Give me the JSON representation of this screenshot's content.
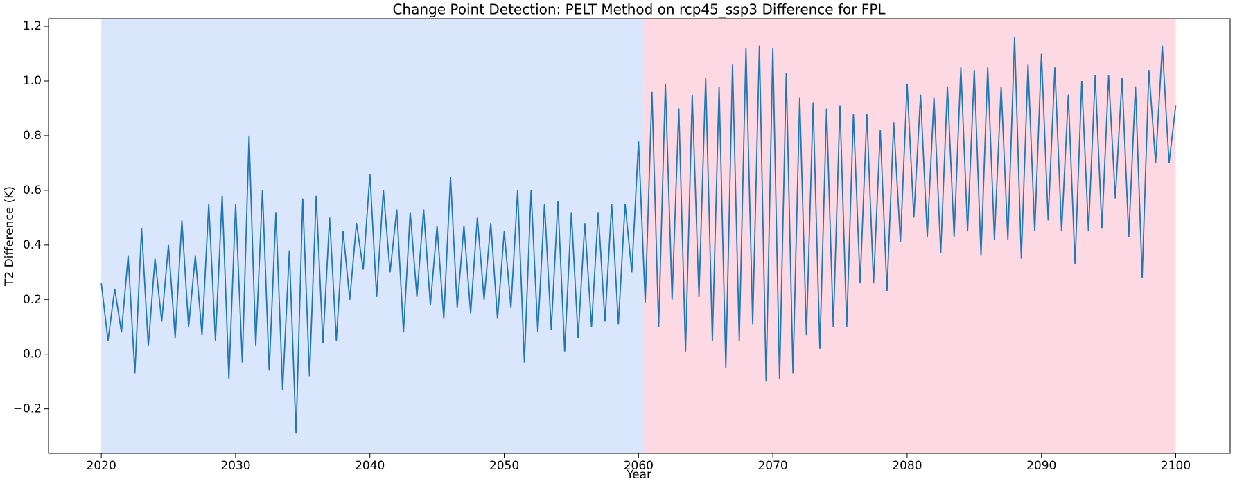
{
  "chart_data": {
    "type": "line",
    "title": "Change Point Detection: PELT Method on rcp45_ssp3 Difference for FPL",
    "x_label": "Year",
    "y_label": "T2 Difference (K)",
    "color": "#1f77b4",
    "regions": [
      {
        "start": 2020,
        "end": 2060.4,
        "color": "#dae6fb"
      },
      {
        "start": 2060.4,
        "end": 2100,
        "color": "#fdd9e3"
      }
    ],
    "x": [
      2020,
      2020.5,
      2021,
      2021.5,
      2022,
      2022.5,
      2023,
      2023.5,
      2024,
      2024.5,
      2025,
      2025.5,
      2026,
      2026.5,
      2027,
      2027.5,
      2028,
      2028.5,
      2029,
      2029.5,
      2030,
      2030.5,
      2031,
      2031.5,
      2032,
      2032.5,
      2033,
      2033.5,
      2034,
      2034.5,
      2035,
      2035.5,
      2036,
      2036.5,
      2037,
      2037.5,
      2038,
      2038.5,
      2039,
      2039.5,
      2040,
      2040.5,
      2041,
      2041.5,
      2042,
      2042.5,
      2043,
      2043.5,
      2044,
      2044.5,
      2045,
      2045.5,
      2046,
      2046.5,
      2047,
      2047.5,
      2048,
      2048.5,
      2049,
      2049.5,
      2050,
      2050.5,
      2051,
      2051.5,
      2052,
      2052.5,
      2053,
      2053.5,
      2054,
      2054.5,
      2055,
      2055.5,
      2056,
      2056.5,
      2057,
      2057.5,
      2058,
      2058.5,
      2059,
      2059.5,
      2060,
      2060.5,
      2061,
      2061.5,
      2062,
      2062.5,
      2063,
      2063.5,
      2064,
      2064.5,
      2065,
      2065.5,
      2066,
      2066.5,
      2067,
      2067.5,
      2068,
      2068.5,
      2069,
      2069.5,
      2070,
      2070.5,
      2071,
      2071.5,
      2072,
      2072.5,
      2073,
      2073.5,
      2074,
      2074.5,
      2075,
      2075.5,
      2076,
      2076.5,
      2077,
      2077.5,
      2078,
      2078.5,
      2079,
      2079.5,
      2080,
      2080.5,
      2081,
      2081.5,
      2082,
      2082.5,
      2083,
      2083.5,
      2084,
      2084.5,
      2085,
      2085.5,
      2086,
      2086.5,
      2087,
      2087.5,
      2088,
      2088.5,
      2089,
      2089.5,
      2090,
      2090.5,
      2091,
      2091.5,
      2092,
      2092.5,
      2093,
      2093.5,
      2094,
      2094.5,
      2095,
      2095.5,
      2096,
      2096.5,
      2097,
      2097.5,
      2098,
      2098.5,
      2099,
      2099.5,
      2100
    ],
    "values": [
      0.26,
      0.05,
      0.24,
      0.08,
      0.36,
      -0.07,
      0.46,
      0.03,
      0.35,
      0.12,
      0.4,
      0.06,
      0.49,
      0.1,
      0.36,
      0.07,
      0.55,
      0.05,
      0.58,
      -0.09,
      0.55,
      -0.03,
      0.8,
      0.03,
      0.6,
      -0.06,
      0.52,
      -0.13,
      0.38,
      -0.29,
      0.57,
      -0.08,
      0.58,
      0.04,
      0.5,
      0.05,
      0.45,
      0.2,
      0.48,
      0.31,
      0.66,
      0.21,
      0.6,
      0.3,
      0.53,
      0.08,
      0.52,
      0.21,
      0.53,
      0.18,
      0.47,
      0.13,
      0.65,
      0.17,
      0.47,
      0.15,
      0.5,
      0.2,
      0.48,
      0.13,
      0.45,
      0.17,
      0.6,
      -0.03,
      0.6,
      0.08,
      0.55,
      0.09,
      0.56,
      0.01,
      0.52,
      0.06,
      0.48,
      0.1,
      0.52,
      0.12,
      0.55,
      0.11,
      0.55,
      0.3,
      0.78,
      0.19,
      0.96,
      0.1,
      0.99,
      0.2,
      0.9,
      0.01,
      0.95,
      0.21,
      1.01,
      0.05,
      0.98,
      -0.05,
      1.06,
      0.05,
      1.12,
      0.11,
      1.13,
      -0.1,
      1.12,
      -0.09,
      1.03,
      -0.07,
      0.94,
      0.07,
      0.92,
      0.02,
      0.9,
      0.1,
      0.91,
      0.1,
      0.88,
      0.26,
      0.88,
      0.26,
      0.82,
      0.23,
      0.85,
      0.41,
      0.99,
      0.5,
      0.95,
      0.43,
      0.94,
      0.37,
      0.98,
      0.43,
      1.05,
      0.45,
      1.04,
      0.36,
      1.05,
      0.42,
      0.98,
      0.42,
      1.16,
      0.35,
      1.06,
      0.45,
      1.1,
      0.49,
      1.05,
      0.45,
      0.95,
      0.33,
      1.0,
      0.45,
      1.02,
      0.46,
      1.02,
      0.57,
      1.01,
      0.43,
      0.98,
      0.28,
      1.04,
      0.7,
      1.13,
      0.7,
      0.91
    ],
    "xlim": [
      2016.07,
      2104.05
    ],
    "xticks": [
      2020,
      2030,
      2040,
      2050,
      2060,
      2070,
      2080,
      2090,
      2100
    ],
    "ylim": [
      -0.363,
      1.228
    ],
    "yticks": [
      {
        "value": -0.2,
        "label": "−0.2"
      },
      {
        "value": 0,
        "label": "0.0"
      },
      0.2,
      0.4,
      0.6,
      0.8,
      {
        "value": 1,
        "label": "1.0"
      },
      1.2
    ]
  }
}
